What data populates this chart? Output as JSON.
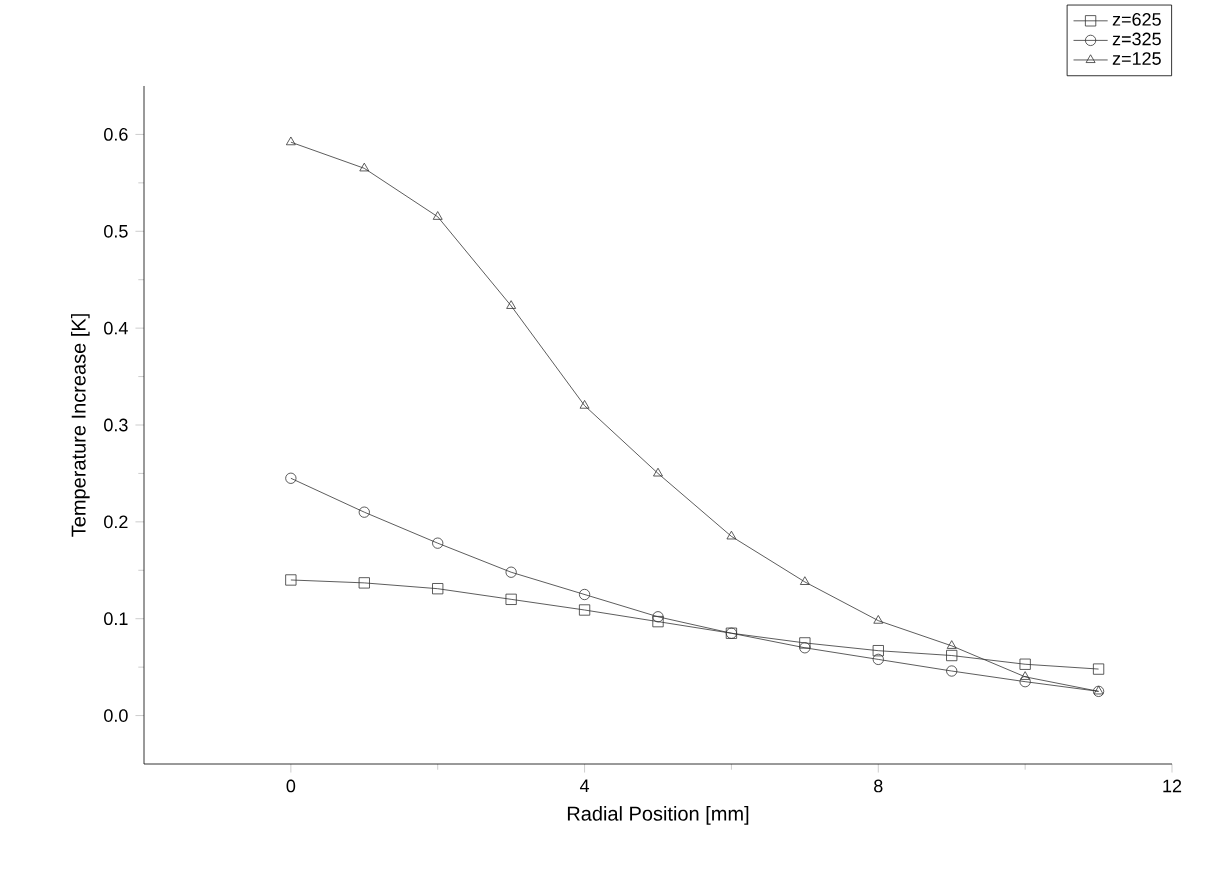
{
  "chart_data": {
    "type": "line",
    "xlabel": "Radial Position [mm]",
    "ylabel": "Temperature Increase [K]",
    "x": [
      0,
      1,
      2,
      3,
      4,
      5,
      6,
      7,
      8,
      9,
      10,
      11
    ],
    "xlim": [
      -2,
      12
    ],
    "xticks": [
      0,
      4,
      8,
      12
    ],
    "ylim": [
      -0.05,
      0.65
    ],
    "yticks": [
      {
        "value": 0,
        "label": "0.0"
      },
      0.1,
      0.2,
      0.3,
      0.4,
      0.5,
      0.6
    ],
    "legend": "top right",
    "grid": false,
    "line_style": "solid",
    "series": [
      {
        "name": "z=625",
        "color": "#333333",
        "marker": "square",
        "values": [
          0.14,
          0.137,
          0.131,
          0.12,
          0.109,
          0.097,
          0.085,
          0.075,
          0.067,
          0.062,
          0.053,
          0.048
        ]
      },
      {
        "name": "z=325",
        "color": "#333333",
        "marker": "circle",
        "values": [
          0.245,
          0.21,
          0.178,
          0.148,
          0.125,
          0.102,
          0.085,
          0.07,
          0.058,
          0.046,
          0.035,
          0.025
        ]
      },
      {
        "name": "z=125",
        "color": "#333333",
        "marker": "triangle",
        "values": [
          0.592,
          0.565,
          0.515,
          0.423,
          0.32,
          0.25,
          0.185,
          0.138,
          0.098,
          0.072,
          0.04,
          0.025
        ]
      }
    ]
  }
}
